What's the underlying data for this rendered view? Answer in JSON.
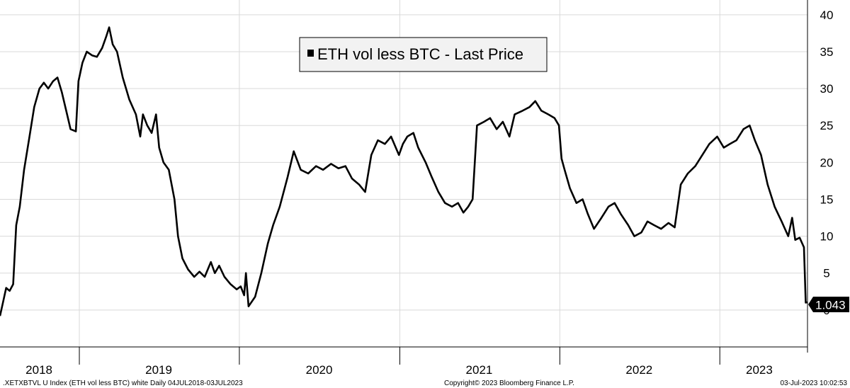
{
  "chart_data": {
    "type": "line",
    "title": "",
    "xlabel": "",
    "ylabel": "",
    "legend": {
      "label": "ETH vol less BTC - Last Price",
      "placement": "top-center"
    },
    "ylim": [
      -5,
      42
    ],
    "yticks": [
      0,
      5,
      10,
      15,
      20,
      25,
      30,
      35,
      40
    ],
    "ytick_labels": [
      "0",
      "5",
      "10",
      "15",
      "20",
      "25",
      "30",
      "35",
      "40"
    ],
    "y_axis_side": "right",
    "grid": true,
    "xlim": [
      "2018-07-04",
      "2023-07-20"
    ],
    "year_labels": [
      {
        "label": "2018",
        "date": "2018-10-01"
      },
      {
        "label": "2019",
        "date": "2019-07-01"
      },
      {
        "label": "2020",
        "date": "2020-07-01"
      },
      {
        "label": "2021",
        "date": "2021-07-01"
      },
      {
        "label": "2022",
        "date": "2022-07-01"
      },
      {
        "label": "2023",
        "date": "2023-04-01"
      }
    ],
    "year_boundaries": [
      "2019-01-01",
      "2020-01-01",
      "2021-01-01",
      "2022-01-01",
      "2023-01-01"
    ],
    "last_value": {
      "label": "1.043",
      "value": 1.043
    },
    "series": [
      {
        "name": "ETH vol less BTC - Last Price",
        "color": "#000000",
        "points": [
          [
            "2018-07-04",
            -0.8
          ],
          [
            "2018-07-10",
            0.8
          ],
          [
            "2018-07-18",
            3.0
          ],
          [
            "2018-07-26",
            2.6
          ],
          [
            "2018-08-03",
            3.5
          ],
          [
            "2018-08-10",
            11.5
          ],
          [
            "2018-08-18",
            14.0
          ],
          [
            "2018-08-28",
            19.0
          ],
          [
            "2018-09-08",
            23.0
          ],
          [
            "2018-09-20",
            27.5
          ],
          [
            "2018-10-02",
            30.0
          ],
          [
            "2018-10-12",
            30.8
          ],
          [
            "2018-10-22",
            30.0
          ],
          [
            "2018-11-02",
            31.0
          ],
          [
            "2018-11-12",
            31.5
          ],
          [
            "2018-11-22",
            29.5
          ],
          [
            "2018-12-02",
            27.0
          ],
          [
            "2018-12-12",
            24.5
          ],
          [
            "2018-12-24",
            24.2
          ],
          [
            "2018-12-30",
            31.0
          ],
          [
            "2019-01-08",
            33.5
          ],
          [
            "2019-01-18",
            35.0
          ],
          [
            "2019-01-30",
            34.5
          ],
          [
            "2019-02-10",
            34.3
          ],
          [
            "2019-02-22",
            35.5
          ],
          [
            "2019-03-03",
            37.0
          ],
          [
            "2019-03-10",
            38.3
          ],
          [
            "2019-03-18",
            36.0
          ],
          [
            "2019-03-28",
            35.0
          ],
          [
            "2019-04-10",
            31.5
          ],
          [
            "2019-04-25",
            28.5
          ],
          [
            "2019-05-10",
            26.5
          ],
          [
            "2019-05-20",
            23.5
          ],
          [
            "2019-05-26",
            26.5
          ],
          [
            "2019-06-05",
            25.0
          ],
          [
            "2019-06-15",
            24.0
          ],
          [
            "2019-06-25",
            26.5
          ],
          [
            "2019-07-02",
            22.0
          ],
          [
            "2019-07-12",
            20.0
          ],
          [
            "2019-07-24",
            19.0
          ],
          [
            "2019-08-06",
            15.0
          ],
          [
            "2019-08-14",
            10.0
          ],
          [
            "2019-08-24",
            7.0
          ],
          [
            "2019-09-06",
            5.5
          ],
          [
            "2019-09-20",
            4.5
          ],
          [
            "2019-10-02",
            5.2
          ],
          [
            "2019-10-14",
            4.5
          ],
          [
            "2019-10-28",
            6.5
          ],
          [
            "2019-11-06",
            5.0
          ],
          [
            "2019-11-16",
            6.0
          ],
          [
            "2019-11-28",
            4.5
          ],
          [
            "2019-12-12",
            3.5
          ],
          [
            "2019-12-26",
            2.8
          ],
          [
            "2020-01-04",
            3.2
          ],
          [
            "2020-01-12",
            2.0
          ],
          [
            "2020-01-16",
            5.0
          ],
          [
            "2020-01-22",
            0.5
          ],
          [
            "2020-02-06",
            1.8
          ],
          [
            "2020-02-20",
            5.0
          ],
          [
            "2020-03-06",
            9.0
          ],
          [
            "2020-03-18",
            11.5
          ],
          [
            "2020-04-02",
            14.0
          ],
          [
            "2020-04-20",
            18.0
          ],
          [
            "2020-05-04",
            21.5
          ],
          [
            "2020-05-20",
            19.0
          ],
          [
            "2020-06-06",
            18.5
          ],
          [
            "2020-06-24",
            19.5
          ],
          [
            "2020-07-10",
            19.0
          ],
          [
            "2020-07-28",
            19.8
          ],
          [
            "2020-08-14",
            19.2
          ],
          [
            "2020-08-30",
            19.5
          ],
          [
            "2020-09-14",
            17.8
          ],
          [
            "2020-09-30",
            17.0
          ],
          [
            "2020-10-14",
            16.0
          ],
          [
            "2020-10-28",
            21.0
          ],
          [
            "2020-11-12",
            23.0
          ],
          [
            "2020-11-28",
            22.5
          ],
          [
            "2020-12-12",
            23.5
          ],
          [
            "2020-12-30",
            21.0
          ],
          [
            "2021-01-08",
            22.5
          ],
          [
            "2021-01-18",
            23.5
          ],
          [
            "2021-02-01",
            24.0
          ],
          [
            "2021-02-12",
            22.0
          ],
          [
            "2021-03-01",
            20.0
          ],
          [
            "2021-03-15",
            18.0
          ],
          [
            "2021-03-30",
            16.0
          ],
          [
            "2021-04-14",
            14.5
          ],
          [
            "2021-04-30",
            14.0
          ],
          [
            "2021-05-14",
            14.5
          ],
          [
            "2021-05-26",
            13.2
          ],
          [
            "2021-06-06",
            14.0
          ],
          [
            "2021-06-16",
            15.0
          ],
          [
            "2021-06-26",
            25.0
          ],
          [
            "2021-07-12",
            25.5
          ],
          [
            "2021-07-26",
            26.0
          ],
          [
            "2021-08-10",
            24.5
          ],
          [
            "2021-08-24",
            25.5
          ],
          [
            "2021-09-08",
            23.5
          ],
          [
            "2021-09-20",
            26.5
          ],
          [
            "2021-10-08",
            27.0
          ],
          [
            "2021-10-24",
            27.5
          ],
          [
            "2021-11-06",
            28.3
          ],
          [
            "2021-11-20",
            27.0
          ],
          [
            "2021-12-06",
            26.5
          ],
          [
            "2021-12-20",
            26.0
          ],
          [
            "2021-12-30",
            25.0
          ],
          [
            "2022-01-05",
            20.5
          ],
          [
            "2022-01-12",
            19.0
          ],
          [
            "2022-01-24",
            16.5
          ],
          [
            "2022-02-08",
            14.5
          ],
          [
            "2022-02-22",
            15.0
          ],
          [
            "2022-03-06",
            13.0
          ],
          [
            "2022-03-20",
            11.0
          ],
          [
            "2022-04-06",
            12.5
          ],
          [
            "2022-04-22",
            14.0
          ],
          [
            "2022-05-06",
            14.5
          ],
          [
            "2022-05-20",
            13.0
          ],
          [
            "2022-06-06",
            11.5
          ],
          [
            "2022-06-20",
            10.0
          ],
          [
            "2022-07-06",
            10.5
          ],
          [
            "2022-07-20",
            12.0
          ],
          [
            "2022-08-04",
            11.5
          ],
          [
            "2022-08-20",
            11.0
          ],
          [
            "2022-09-06",
            11.8
          ],
          [
            "2022-09-20",
            11.2
          ],
          [
            "2022-10-04",
            17.0
          ],
          [
            "2022-10-20",
            18.5
          ],
          [
            "2022-11-06",
            19.5
          ],
          [
            "2022-11-22",
            21.0
          ],
          [
            "2022-12-08",
            22.5
          ],
          [
            "2022-12-26",
            23.5
          ],
          [
            "2023-01-10",
            22.0
          ],
          [
            "2023-01-24",
            22.5
          ],
          [
            "2023-02-08",
            23.0
          ],
          [
            "2023-02-24",
            24.5
          ],
          [
            "2023-03-10",
            25.0
          ],
          [
            "2023-03-22",
            23.0
          ],
          [
            "2023-04-05",
            21.0
          ],
          [
            "2023-04-20",
            17.0
          ],
          [
            "2023-05-06",
            14.0
          ],
          [
            "2023-05-22",
            12.0
          ],
          [
            "2023-06-06",
            10.0
          ],
          [
            "2023-06-15",
            12.5
          ],
          [
            "2023-06-22",
            9.5
          ],
          [
            "2023-07-02",
            9.8
          ],
          [
            "2023-07-08",
            9.0
          ],
          [
            "2023-07-12",
            8.5
          ],
          [
            "2023-07-16",
            1.0
          ],
          [
            "2023-07-20",
            1.043
          ]
        ]
      }
    ]
  },
  "footer": {
    "left": ".XETXBTVL U Index (ETH vol less BTC) white  Daily 04JUL2018-03JUL2023",
    "center": "Copyright© 2023 Bloomberg Finance L.P.",
    "right": "03-Jul-2023 10:02:53"
  },
  "colors": {
    "line": "#000000",
    "grid": "#d9d9d9",
    "legend_bg": "#f2f2f2",
    "legend_border": "#000000",
    "badge_bg": "#000000",
    "badge_text": "#ffffff"
  }
}
